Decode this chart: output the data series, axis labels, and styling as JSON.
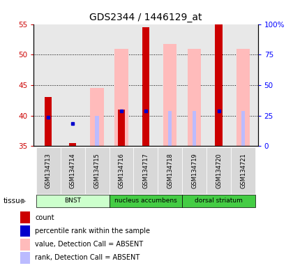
{
  "title": "GDS2344 / 1446129_at",
  "samples": [
    "GSM134713",
    "GSM134714",
    "GSM134715",
    "GSM134716",
    "GSM134717",
    "GSM134718",
    "GSM134719",
    "GSM134720",
    "GSM134721"
  ],
  "count_values": [
    43.0,
    35.5,
    null,
    41.0,
    54.5,
    null,
    null,
    55.0,
    null
  ],
  "percentile_rank": [
    39.7,
    38.7,
    null,
    40.8,
    40.8,
    null,
    null,
    40.7,
    null
  ],
  "absent_value": [
    null,
    null,
    44.5,
    51.0,
    null,
    51.7,
    51.0,
    null,
    51.0
  ],
  "absent_rank": [
    null,
    null,
    40.0,
    40.8,
    null,
    40.7,
    40.7,
    null,
    40.7
  ],
  "ylim_left": [
    35,
    55
  ],
  "yticks_left": [
    35,
    40,
    45,
    50,
    55
  ],
  "yticks_right_labels": [
    "0",
    "25",
    "50",
    "75",
    "100%"
  ],
  "yticks_right_positions": [
    35,
    40,
    45,
    50,
    55
  ],
  "tissue_groups": [
    {
      "label": "BNST",
      "start": 0,
      "end": 3,
      "color": "#ccffcc"
    },
    {
      "label": "nucleus accumbens",
      "start": 3,
      "end": 6,
      "color": "#55dd55"
    },
    {
      "label": "dorsal striatum",
      "start": 6,
      "end": 9,
      "color": "#55dd55"
    }
  ],
  "tissue_label": "tissue",
  "count_color": "#cc0000",
  "percentile_color": "#0000cc",
  "absent_value_color": "#ffbbbb",
  "absent_rank_color": "#bbbbff",
  "plot_bg_color": "#e8e8e8",
  "legend_items": [
    {
      "label": "count",
      "color": "#cc0000"
    },
    {
      "label": "percentile rank within the sample",
      "color": "#0000cc"
    },
    {
      "label": "value, Detection Call = ABSENT",
      "color": "#ffbbbb"
    },
    {
      "label": "rank, Detection Call = ABSENT",
      "color": "#bbbbff"
    }
  ]
}
